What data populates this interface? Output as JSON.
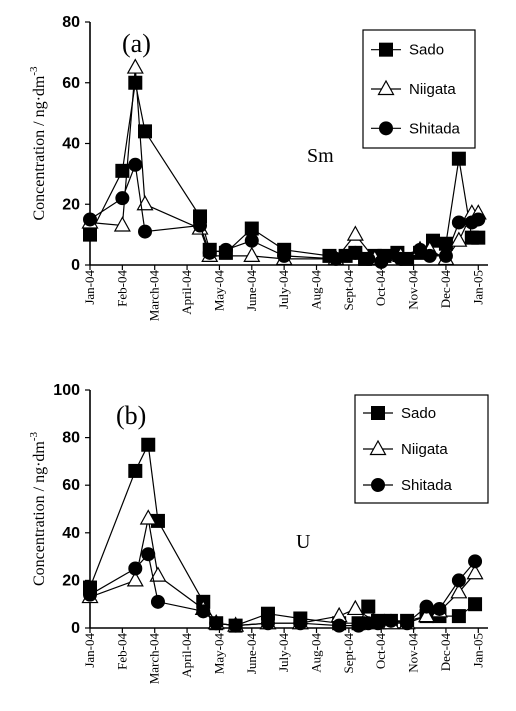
{
  "chart_data": [
    {
      "type": "line",
      "panel_label": "(a)",
      "element_label": "Sm",
      "ylabel": "Concentration / ng·dm",
      "ylabel_sup": "-3",
      "ylim": [
        0,
        80
      ],
      "yticks": [
        0,
        20,
        40,
        60,
        80
      ],
      "xlim": [
        0,
        12.3
      ],
      "month_ticks": [
        "Jan-04",
        "Feb-04",
        "March-04",
        "April-04",
        "May-04",
        "June-04",
        "July-04",
        "Aug-04",
        "Sept-04",
        "Oct-04",
        "Nov-04",
        "Dec-04",
        "Jan-05"
      ],
      "legend_position": "top-right",
      "series": [
        {
          "name": "Sado",
          "marker": "square",
          "x": [
            0,
            1.0,
            1.4,
            1.7,
            3.4,
            3.7,
            4.2,
            5.0,
            6.0,
            7.4,
            7.9,
            8.2,
            8.5,
            8.8,
            9.1,
            9.5,
            9.8,
            10.2,
            10.6,
            11.0,
            11.4,
            11.8,
            12.0
          ],
          "y": [
            10,
            31,
            60,
            44,
            16,
            5,
            4,
            12,
            5,
            3,
            3,
            4,
            2,
            3,
            3,
            4,
            2,
            4,
            8,
            7,
            35,
            9,
            9
          ]
        },
        {
          "name": "Niigata",
          "marker": "triangle",
          "x": [
            0,
            1.0,
            1.4,
            1.7,
            3.4,
            3.7,
            5.0,
            6.0,
            7.6,
            8.2,
            8.8,
            9.6,
            10.2,
            10.5,
            11.0,
            11.4,
            11.8,
            12.0
          ],
          "y": [
            14,
            13,
            65,
            20,
            12,
            3,
            3,
            2,
            2,
            10,
            2,
            3,
            5,
            5,
            2,
            8,
            17,
            17
          ]
        },
        {
          "name": "Shitada",
          "marker": "circle",
          "x": [
            0,
            1.0,
            1.4,
            1.7,
            3.4,
            3.7,
            4.2,
            5.0,
            6.0,
            7.6,
            8.2,
            8.6,
            9.0,
            9.6,
            10.2,
            10.5,
            11.0,
            11.4,
            11.8,
            12.0
          ],
          "y": [
            15,
            22,
            33,
            11,
            13,
            4,
            5,
            8,
            3,
            2,
            4,
            2,
            1,
            2,
            5,
            3,
            3,
            14,
            14,
            15
          ]
        }
      ]
    },
    {
      "type": "line",
      "panel_label": "(b)",
      "element_label": "U",
      "ylabel": "Concentration / ng·dm",
      "ylabel_sup": "-3",
      "ylim": [
        0,
        100
      ],
      "yticks": [
        0,
        20,
        40,
        60,
        80,
        100
      ],
      "xlim": [
        0,
        12.3
      ],
      "month_ticks": [
        "Jan-04",
        "Feb-04",
        "March-04",
        "April-04",
        "May-04",
        "June-04",
        "July-04",
        "Aug-04",
        "Sept-04",
        "Oct-04",
        "Nov-04",
        "Dec-04",
        "Jan-05"
      ],
      "legend_position": "top-right",
      "series": [
        {
          "name": "Sado",
          "marker": "square",
          "x": [
            0,
            1.4,
            1.8,
            2.1,
            3.5,
            3.9,
            4.5,
            5.5,
            6.5,
            7.7,
            8.3,
            8.6,
            8.9,
            9.3,
            9.8,
            10.4,
            10.8,
            11.4,
            11.9
          ],
          "y": [
            17,
            66,
            77,
            45,
            11,
            2,
            1,
            6,
            4,
            2,
            2,
            9,
            3,
            3,
            3,
            5,
            5,
            5,
            10
          ]
        },
        {
          "name": "Niigata",
          "marker": "triangle",
          "x": [
            0,
            1.4,
            1.8,
            2.1,
            3.5,
            3.9,
            4.5,
            5.5,
            6.5,
            7.7,
            8.2,
            8.9,
            9.3,
            9.8,
            10.4,
            10.8,
            11.4,
            11.9
          ],
          "y": [
            13,
            20,
            46,
            22,
            8,
            2,
            1,
            2,
            2,
            5,
            8,
            2,
            2,
            2,
            5,
            7,
            15,
            23
          ]
        },
        {
          "name": "Shitada",
          "marker": "circle",
          "x": [
            0,
            1.4,
            1.8,
            2.1,
            3.5,
            3.9,
            4.5,
            5.5,
            6.5,
            7.7,
            8.3,
            8.6,
            8.9,
            9.3,
            9.8,
            10.4,
            10.8,
            11.4,
            11.9
          ],
          "y": [
            14,
            25,
            31,
            11,
            7,
            2,
            1,
            2,
            2,
            1,
            1,
            2,
            2,
            3,
            2,
            9,
            8,
            20,
            28
          ]
        }
      ]
    }
  ]
}
